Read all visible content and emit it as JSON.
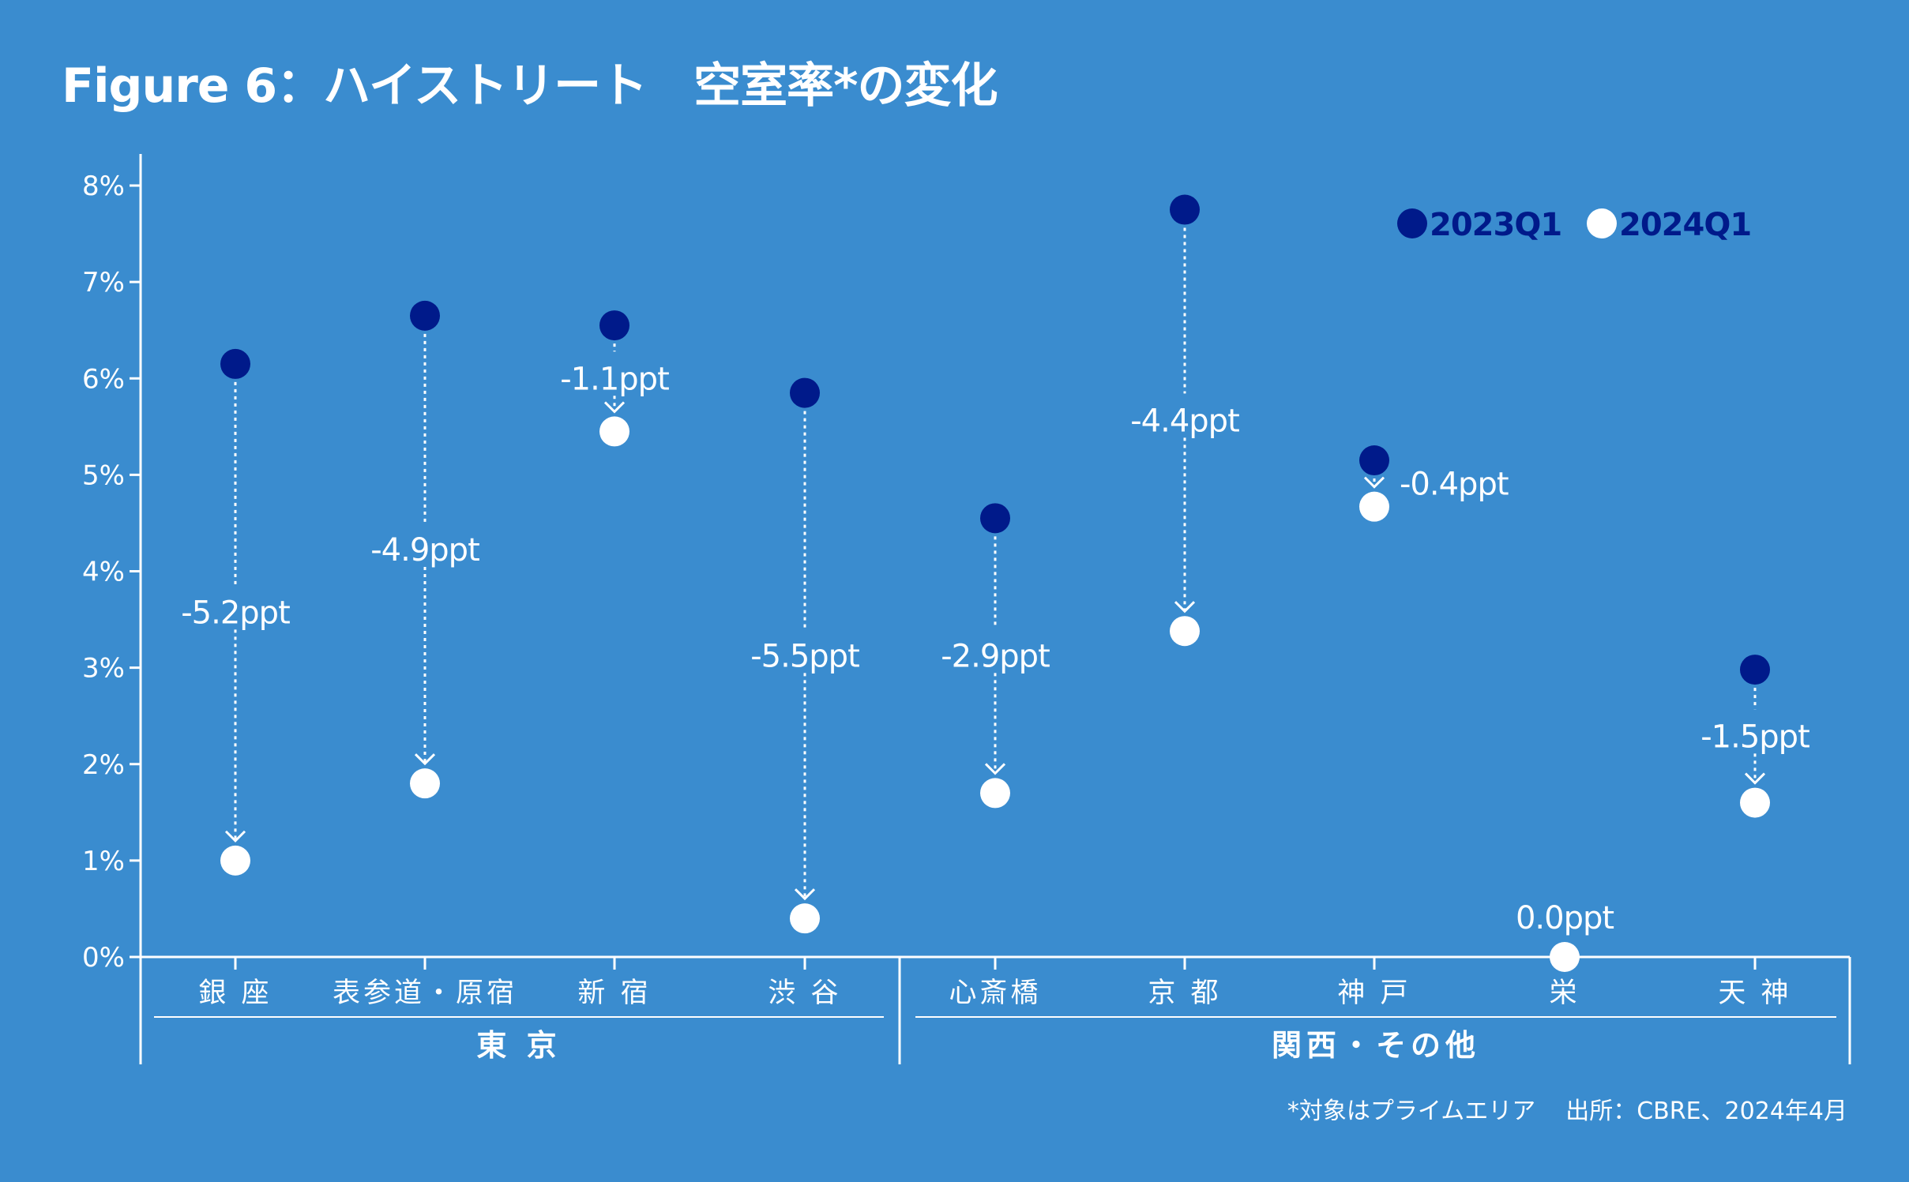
{
  "title": "Figure 6：ハイストリート　空室率*の変化",
  "chart_data": {
    "type": "scatter",
    "y_ticks": [
      "0%",
      "1%",
      "2%",
      "3%",
      "4%",
      "5%",
      "6%",
      "7%",
      "8%"
    ],
    "ylim": [
      0,
      8
    ],
    "categories": [
      "銀 座",
      "表参道・原宿",
      "新 宿",
      "渋 谷",
      "心斎橋",
      "京 都",
      "神 戸",
      "栄",
      "天 神"
    ],
    "groups": [
      {
        "name": "東 京",
        "count": 4
      },
      {
        "name": "関西・その他",
        "count": 5
      }
    ],
    "series": [
      {
        "name": "2023Q1",
        "color": "#001a8a",
        "values": [
          6.15,
          6.65,
          6.55,
          5.85,
          4.55,
          7.75,
          5.15,
          0.0,
          2.98
        ]
      },
      {
        "name": "2024Q1",
        "color": "#ffffff",
        "values": [
          1.0,
          1.8,
          5.45,
          0.4,
          1.7,
          3.38,
          4.67,
          0.0,
          1.6
        ]
      }
    ],
    "change_labels": [
      "-5.2ppt",
      "-4.9ppt",
      "-1.1ppt",
      "-5.5ppt",
      "-2.9ppt",
      "-4.4ppt",
      "-0.4ppt",
      "0.0ppt",
      "-1.5ppt"
    ],
    "legend_position": "top-right"
  },
  "footnote": {
    "note": "*対象はプライムエリア",
    "source": "出所：CBRE、2024年4月"
  }
}
